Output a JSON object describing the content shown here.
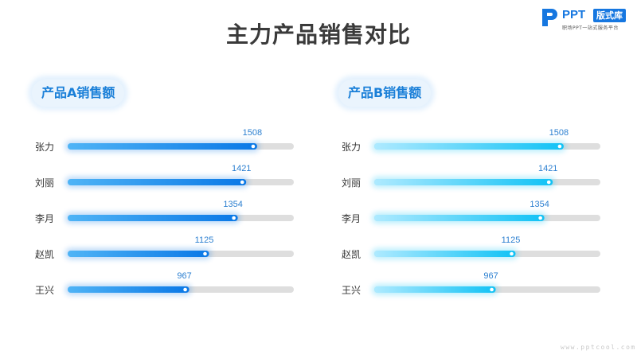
{
  "page": {
    "title": "主力产品销售对比",
    "logo": {
      "brand": "PPT",
      "badge": "版式库",
      "tagline": "职场PPT一站式服务平台"
    },
    "watermark": "www.pptcool.com"
  },
  "colors": {
    "track": "#dedede",
    "series_a": [
      "#4fb4f6",
      "#0a78e6"
    ],
    "series_b": [
      "#aeeaff",
      "#10c2f5"
    ],
    "value_label": "#2b7fd0",
    "category_label": "#333333"
  },
  "chart_data": [
    {
      "type": "bar",
      "orientation": "horizontal",
      "title": "产品A销售额",
      "categories": [
        "张力",
        "刘丽",
        "李月",
        "赵凯",
        "王兴"
      ],
      "values": [
        1508,
        1421,
        1354,
        1125,
        967
      ],
      "xlim": [
        0,
        1800
      ],
      "grid": false,
      "legend": "none"
    },
    {
      "type": "bar",
      "orientation": "horizontal",
      "title": "产品B销售额",
      "categories": [
        "张力",
        "刘丽",
        "李月",
        "赵凯",
        "王兴"
      ],
      "values": [
        1508,
        1421,
        1354,
        1125,
        967
      ],
      "xlim": [
        0,
        1800
      ],
      "grid": false,
      "legend": "none"
    }
  ]
}
